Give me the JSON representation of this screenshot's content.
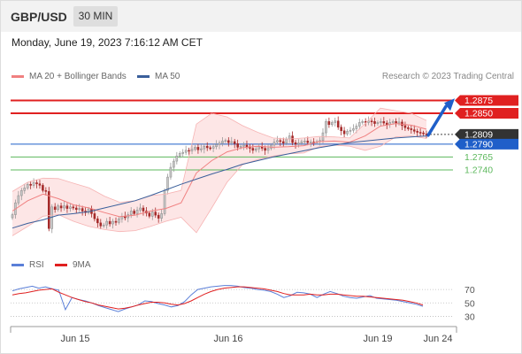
{
  "header": {
    "pair": "GBP/USD",
    "timeframe": "30 MIN",
    "datetime": "Monday, June 19, 2023 7:16:12 AM CET"
  },
  "legend": {
    "bollinger": "MA 20 + Bollinger Bands",
    "ma50": "MA 50",
    "credit": "Research © 2023 Trading Central"
  },
  "rsi_legend": {
    "rsi": "RSI",
    "ma9": "9MA"
  },
  "colors": {
    "resistance": "#e02020",
    "support": "#5cb85c",
    "pivot": "#1f5fc9",
    "ma50": "#3a5f9b",
    "bollinger": "#f08080",
    "bands_fill": "#fde3e3",
    "candle_up": "#c8c8c8",
    "candle_down": "#a52a2a",
    "current_price_bg": "#333333",
    "rsi": "#5b7fd8",
    "rsi_ma": "#e02020",
    "arrow": "#1f5fc9"
  },
  "chart_data": [
    {
      "type": "candlestick",
      "title": "",
      "x_ticks": [
        "Jun 15",
        "Jun 16",
        "Jun 19",
        "Jun 24"
      ],
      "ylim": [
        1.258,
        1.2905
      ],
      "levels": [
        {
          "label": "1.2875",
          "value": 1.2875,
          "kind": "resistance"
        },
        {
          "label": "1.2850",
          "value": 1.285,
          "kind": "resistance"
        },
        {
          "label": "1.2809",
          "value": 1.2809,
          "kind": "current"
        },
        {
          "label": "1.2790",
          "value": 1.279,
          "kind": "pivot"
        },
        {
          "label": "1.2765",
          "value": 1.2765,
          "kind": "support"
        },
        {
          "label": "1.2740",
          "value": 1.274,
          "kind": "support"
        }
      ],
      "close_series": [
        1.2653,
        1.2676,
        1.269,
        1.27,
        1.2705,
        1.2712,
        1.271,
        1.2715,
        1.2713,
        1.271,
        1.27,
        1.2698,
        1.2626,
        1.2668,
        1.2663,
        1.267,
        1.2666,
        1.267,
        1.2665,
        1.2668,
        1.2666,
        1.2663,
        1.2665,
        1.266,
        1.2657,
        1.2664,
        1.2655,
        1.2645,
        1.2637,
        1.2631,
        1.2633,
        1.264,
        1.2635,
        1.264,
        1.2638,
        1.2645,
        1.265,
        1.2647,
        1.2653,
        1.266,
        1.2655,
        1.2662,
        1.2666,
        1.266,
        1.2656,
        1.265,
        1.2658,
        1.2652,
        1.2646,
        1.2655,
        1.27,
        1.2726,
        1.2745,
        1.2757,
        1.2767,
        1.2772,
        1.2774,
        1.2778,
        1.2777,
        1.278,
        1.2784,
        1.2779,
        1.2781,
        1.2786,
        1.2783,
        1.2782,
        1.2785,
        1.2789,
        1.2792,
        1.2796,
        1.2797,
        1.2793,
        1.2795,
        1.2791,
        1.2784,
        1.2786,
        1.2788,
        1.2785,
        1.2782,
        1.2778,
        1.2781,
        1.2785,
        1.2782,
        1.2778,
        1.2782,
        1.2788,
        1.2794,
        1.2797,
        1.2795,
        1.2792,
        1.28,
        1.2806,
        1.2793,
        1.279,
        1.2792,
        1.2795,
        1.2796,
        1.2793,
        1.2794,
        1.2793,
        1.2795,
        1.2797,
        1.2812,
        1.2834,
        1.2828,
        1.2832,
        1.2835,
        1.2823,
        1.2816,
        1.281,
        1.2815,
        1.2817,
        1.282,
        1.2825,
        1.2832,
        1.2834,
        1.2832,
        1.2835,
        1.2834,
        1.283,
        1.2832,
        1.2834,
        1.2831,
        1.2828,
        1.2832,
        1.2834,
        1.2831,
        1.2833,
        1.2826,
        1.2822,
        1.282,
        1.2818,
        1.2815,
        1.2813,
        1.2812,
        1.281,
        1.2809
      ],
      "ma50_series": [
        1.2627,
        1.2636,
        1.2643,
        1.2652,
        1.2655,
        1.2659,
        1.2666,
        1.2673,
        1.268,
        1.269,
        1.2701,
        1.2712,
        1.2722,
        1.2732,
        1.2741,
        1.2751,
        1.2758,
        1.2765,
        1.2771,
        1.2777,
        1.2783,
        1.2788,
        1.2793,
        1.2796,
        1.2799,
        1.2802,
        1.2804,
        1.2806
      ],
      "ma20_series": [
        1.266,
        1.268,
        1.2693,
        1.2684,
        1.2672,
        1.2666,
        1.2657,
        1.2649,
        1.2652,
        1.266,
        1.2665,
        1.2676,
        1.2734,
        1.2758,
        1.2775,
        1.2783,
        1.2786,
        1.2784,
        1.2785,
        1.2787,
        1.2795,
        1.2796,
        1.2794,
        1.2806,
        1.2825,
        1.283,
        1.2827,
        1.2819
      ],
      "band_upper": [
        1.2698,
        1.2716,
        1.2724,
        1.2723,
        1.2714,
        1.2705,
        1.2689,
        1.2677,
        1.268,
        1.269,
        1.2693,
        1.27,
        1.2829,
        1.285,
        1.2843,
        1.2826,
        1.2813,
        1.2802,
        1.28,
        1.2802,
        1.2805,
        1.2804,
        1.2802,
        1.283,
        1.286,
        1.2855,
        1.285,
        1.2836
      ],
      "band_lower": [
        1.2612,
        1.263,
        1.265,
        1.2653,
        1.264,
        1.263,
        1.2624,
        1.262,
        1.2622,
        1.263,
        1.264,
        1.2648,
        1.2618,
        1.2666,
        1.2716,
        1.275,
        1.276,
        1.2767,
        1.2771,
        1.2773,
        1.2785,
        1.2788,
        1.2786,
        1.2778,
        1.2786,
        1.2804,
        1.2806,
        1.2801
      ]
    },
    {
      "type": "line",
      "title": "RSI",
      "ylim": [
        20,
        90
      ],
      "y_ticks": [
        70,
        50,
        30
      ],
      "series": [
        {
          "name": "RSI",
          "values": [
            68,
            71,
            73,
            75,
            72,
            74,
            71,
            69,
            40,
            58,
            55,
            53,
            50,
            46,
            43,
            40,
            37,
            41,
            44,
            47,
            53,
            52,
            49,
            47,
            44,
            46,
            52,
            62,
            70,
            72,
            74,
            75,
            76,
            76,
            75,
            73,
            72,
            70,
            69,
            67,
            63,
            58,
            61,
            66,
            65,
            63,
            58,
            63,
            67,
            64,
            60,
            58,
            57,
            59,
            61,
            57,
            56,
            55,
            54,
            52,
            50,
            48,
            45
          ]
        },
        {
          "name": "9MA",
          "values": [
            62,
            64,
            65,
            67,
            69,
            70,
            71,
            66,
            62,
            58,
            55,
            52,
            50,
            47,
            45,
            43,
            41,
            42,
            44,
            47,
            49,
            51,
            51,
            50,
            48,
            47,
            49,
            53,
            58,
            63,
            67,
            70,
            72,
            73,
            74,
            74,
            73,
            72,
            71,
            69,
            67,
            64,
            62,
            62,
            62,
            63,
            62,
            62,
            63,
            63,
            62,
            61,
            60,
            60,
            59,
            58,
            57,
            56,
            55,
            54,
            52,
            50,
            47
          ]
        }
      ]
    }
  ]
}
